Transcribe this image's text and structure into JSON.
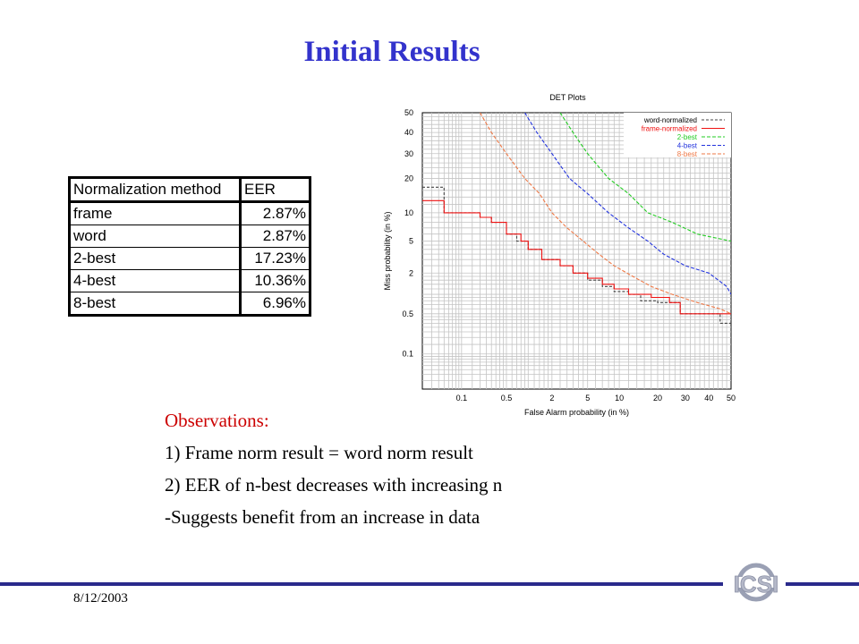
{
  "slide": {
    "title": "Initial Results",
    "date": "8/12/2003",
    "logo_text": "ICSI"
  },
  "table": {
    "headers": [
      "Normalization method",
      "EER"
    ],
    "rows": [
      [
        "frame",
        "2.87%"
      ],
      [
        "word",
        "2.87%"
      ],
      [
        "2-best",
        "17.23%"
      ],
      [
        "4-best",
        "10.36%"
      ],
      [
        "8-best",
        "6.96%"
      ]
    ]
  },
  "observations": {
    "heading": "Observations:",
    "lines": [
      "1) Frame norm result = word norm result",
      "2) EER of n-best decreases with increasing n",
      "-Suggests benefit from an increase in data"
    ]
  },
  "chart_data": {
    "type": "line",
    "title": "DET Plots",
    "xlabel": "False Alarm probability (in %)",
    "ylabel": "Miss probability (in %)",
    "scale": "normal-deviate",
    "xticks": [
      0.1,
      0.5,
      2,
      5,
      10,
      20,
      30,
      40,
      50
    ],
    "yticks": [
      0.1,
      0.5,
      2,
      5,
      10,
      20,
      30,
      40,
      50
    ],
    "xlim": [
      0.02,
      50
    ],
    "ylim": [
      0.02,
      50
    ],
    "grid": true,
    "legend_position": "top-right",
    "series": [
      {
        "name": "word-normalized",
        "color": "#444444",
        "dash": "3,2",
        "step": true,
        "points": [
          [
            0.02,
            17
          ],
          [
            0.05,
            17
          ],
          [
            0.05,
            10
          ],
          [
            0.12,
            10
          ],
          [
            0.2,
            9
          ],
          [
            0.3,
            8
          ],
          [
            0.5,
            6
          ],
          [
            0.7,
            5
          ],
          [
            1,
            4
          ],
          [
            1.5,
            3
          ],
          [
            2.5,
            2.5
          ],
          [
            3.5,
            2
          ],
          [
            5,
            1.6
          ],
          [
            7,
            1.3
          ],
          [
            9,
            1.1
          ],
          [
            12,
            1
          ],
          [
            15,
            0.8
          ],
          [
            20,
            0.75
          ],
          [
            28,
            0.5
          ],
          [
            40,
            0.5
          ],
          [
            45,
            0.35
          ],
          [
            50,
            0.35
          ]
        ]
      },
      {
        "name": "frame-normalized",
        "color": "#ee1111",
        "dash": "",
        "step": true,
        "points": [
          [
            0.02,
            13
          ],
          [
            0.05,
            13
          ],
          [
            0.05,
            10
          ],
          [
            0.12,
            10
          ],
          [
            0.2,
            9
          ],
          [
            0.3,
            8
          ],
          [
            0.5,
            6
          ],
          [
            0.8,
            5
          ],
          [
            1,
            4
          ],
          [
            1.5,
            3
          ],
          [
            2.5,
            2.5
          ],
          [
            3.5,
            2
          ],
          [
            5,
            1.7
          ],
          [
            7,
            1.4
          ],
          [
            9,
            1.2
          ],
          [
            12,
            1
          ],
          [
            18,
            0.9
          ],
          [
            24,
            0.75
          ],
          [
            28,
            0.5
          ],
          [
            50,
            0.5
          ]
        ]
      },
      {
        "name": "2-best",
        "color": "#22cc22",
        "dash": "4,2",
        "step": false,
        "points": [
          [
            2.5,
            50
          ],
          [
            3.5,
            40
          ],
          [
            5,
            30
          ],
          [
            8,
            20
          ],
          [
            12,
            15
          ],
          [
            17,
            10
          ],
          [
            25,
            8
          ],
          [
            35,
            6
          ],
          [
            42,
            5.5
          ],
          [
            50,
            5
          ]
        ]
      },
      {
        "name": "4-best",
        "color": "#2233dd",
        "dash": "4,2",
        "step": false,
        "points": [
          [
            0.9,
            50
          ],
          [
            1.3,
            40
          ],
          [
            2,
            30
          ],
          [
            3.2,
            20
          ],
          [
            5,
            15
          ],
          [
            8,
            10
          ],
          [
            12,
            7
          ],
          [
            17,
            5
          ],
          [
            22,
            3.5
          ],
          [
            30,
            2.5
          ],
          [
            40,
            2
          ],
          [
            48,
            1.3
          ],
          [
            50,
            1
          ]
        ]
      },
      {
        "name": "8-best",
        "color": "#ee7744",
        "dash": "4,2",
        "step": false,
        "points": [
          [
            0.2,
            50
          ],
          [
            0.3,
            40
          ],
          [
            0.5,
            30
          ],
          [
            0.9,
            20
          ],
          [
            1.4,
            15
          ],
          [
            2,
            10
          ],
          [
            3,
            7
          ],
          [
            4.5,
            5
          ],
          [
            6.5,
            3.5
          ],
          [
            9,
            2.5
          ],
          [
            13,
            1.8
          ],
          [
            18,
            1.3
          ],
          [
            25,
            1
          ],
          [
            35,
            0.75
          ],
          [
            45,
            0.6
          ],
          [
            50,
            0.5
          ]
        ]
      }
    ]
  }
}
